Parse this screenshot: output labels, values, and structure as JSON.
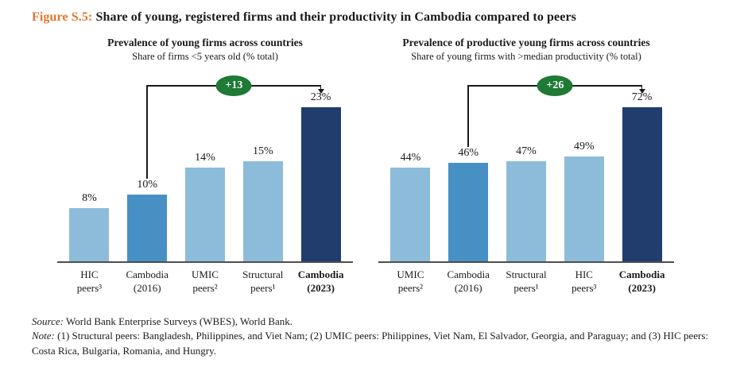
{
  "figure": {
    "label": "Figure S.5:",
    "title": "Share of young, registered firms and their productivity in Cambodia compared to peers"
  },
  "palette": {
    "accent_orange": "#E0772F",
    "bar_light_blue": "#8CBCDA",
    "bar_medium_blue": "#4690C4",
    "bar_dark_navy": "#203D6E",
    "badge_green": "#1E7A34",
    "axis_gray": "#4F4F4F"
  },
  "chart_data": [
    {
      "type": "bar",
      "title": "Prevalence of young firms across countries",
      "subtitle": "Share of firms <5 years old (% total)",
      "categories": [
        "HIC peers³",
        "Cambodia (2016)",
        "UMIC peers²",
        "Structural peers¹",
        "Cambodia (2023)"
      ],
      "values": [
        8,
        10,
        14,
        15,
        23
      ],
      "value_labels": [
        "8%",
        "10%",
        "14%",
        "15%",
        "23%"
      ],
      "bar_colors": [
        "bar_light_blue",
        "bar_medium_blue",
        "bar_light_blue",
        "bar_light_blue",
        "bar_dark_navy"
      ],
      "bold_category_index": 4,
      "annotation": {
        "label": "+13",
        "delta": 13,
        "from_index": 1,
        "to_index": 4
      },
      "y_axis_visible": false,
      "grid": false,
      "ylim": [
        0,
        25
      ]
    },
    {
      "type": "bar",
      "title": "Prevalence of productive young firms across countries",
      "subtitle": "Share of young firms with >median productivity (% total)",
      "categories": [
        "UMIC peers²",
        "Cambodia (2016)",
        "Structural peers¹",
        "HIC peers³",
        "Cambodia (2023)"
      ],
      "values": [
        44,
        46,
        47,
        49,
        72
      ],
      "value_labels": [
        "44%",
        "46%",
        "47%",
        "49%",
        "72%"
      ],
      "bar_colors": [
        "bar_light_blue",
        "bar_medium_blue",
        "bar_light_blue",
        "bar_light_blue",
        "bar_dark_navy"
      ],
      "bold_category_index": 4,
      "annotation": {
        "label": "+26",
        "delta": 26,
        "from_index": 1,
        "to_index": 4
      },
      "y_axis_visible": false,
      "grid": false,
      "ylim": [
        0,
        80
      ]
    }
  ],
  "footer": {
    "source_label": "Source:",
    "source_text": " World Bank Enterprise Surveys (WBES), World Bank.",
    "note_label": "Note:",
    "note_text": " (1) Structural peers: Bangladesh, Philippines, and Viet Nam; (2) UMIC peers: Philippines, Viet Nam, El Salvador, Georgia, and Paraguay; and (3) HIC peers: Costa Rica, Bulgaria, Romania, and Hungry."
  }
}
